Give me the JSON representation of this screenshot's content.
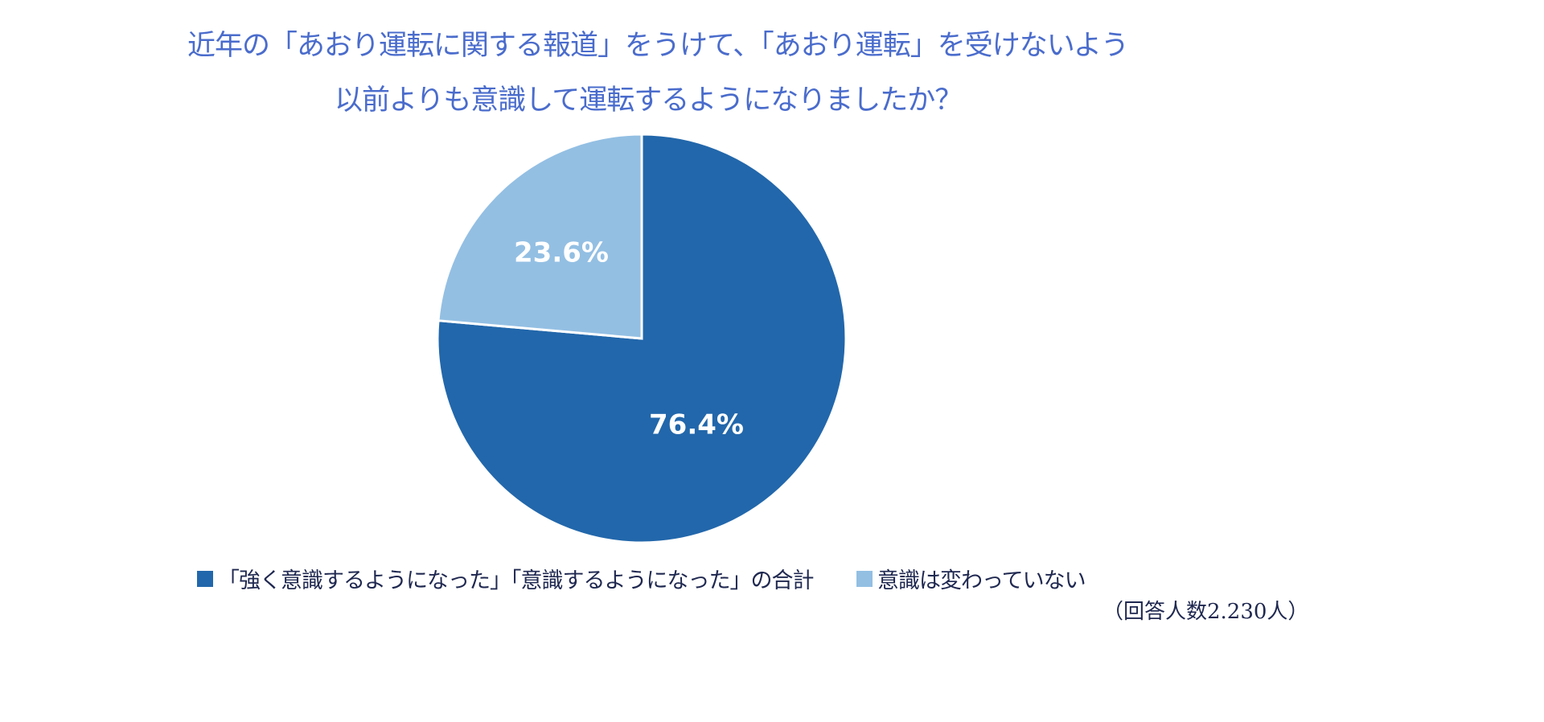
{
  "chart_data": {
    "type": "pie",
    "title_lines": [
      "近年の「あおり運転に関する報道」をうけて、「あおり運転」を受けないよう",
      "以前よりも意識して運転するようになりましたか？"
    ],
    "slices": [
      {
        "label": "「強く意識するようになった」「意識するようになった」の合計",
        "value": 76.4,
        "data_label": "76.4%",
        "color": "#2267ab"
      },
      {
        "label": "意識は変わっていない",
        "value": 23.6,
        "data_label": "23.6%",
        "color": "#93bfe3"
      }
    ],
    "start_angle": "top, clockwise",
    "legend_position": "bottom",
    "note": "（回答人数2.230人）"
  }
}
